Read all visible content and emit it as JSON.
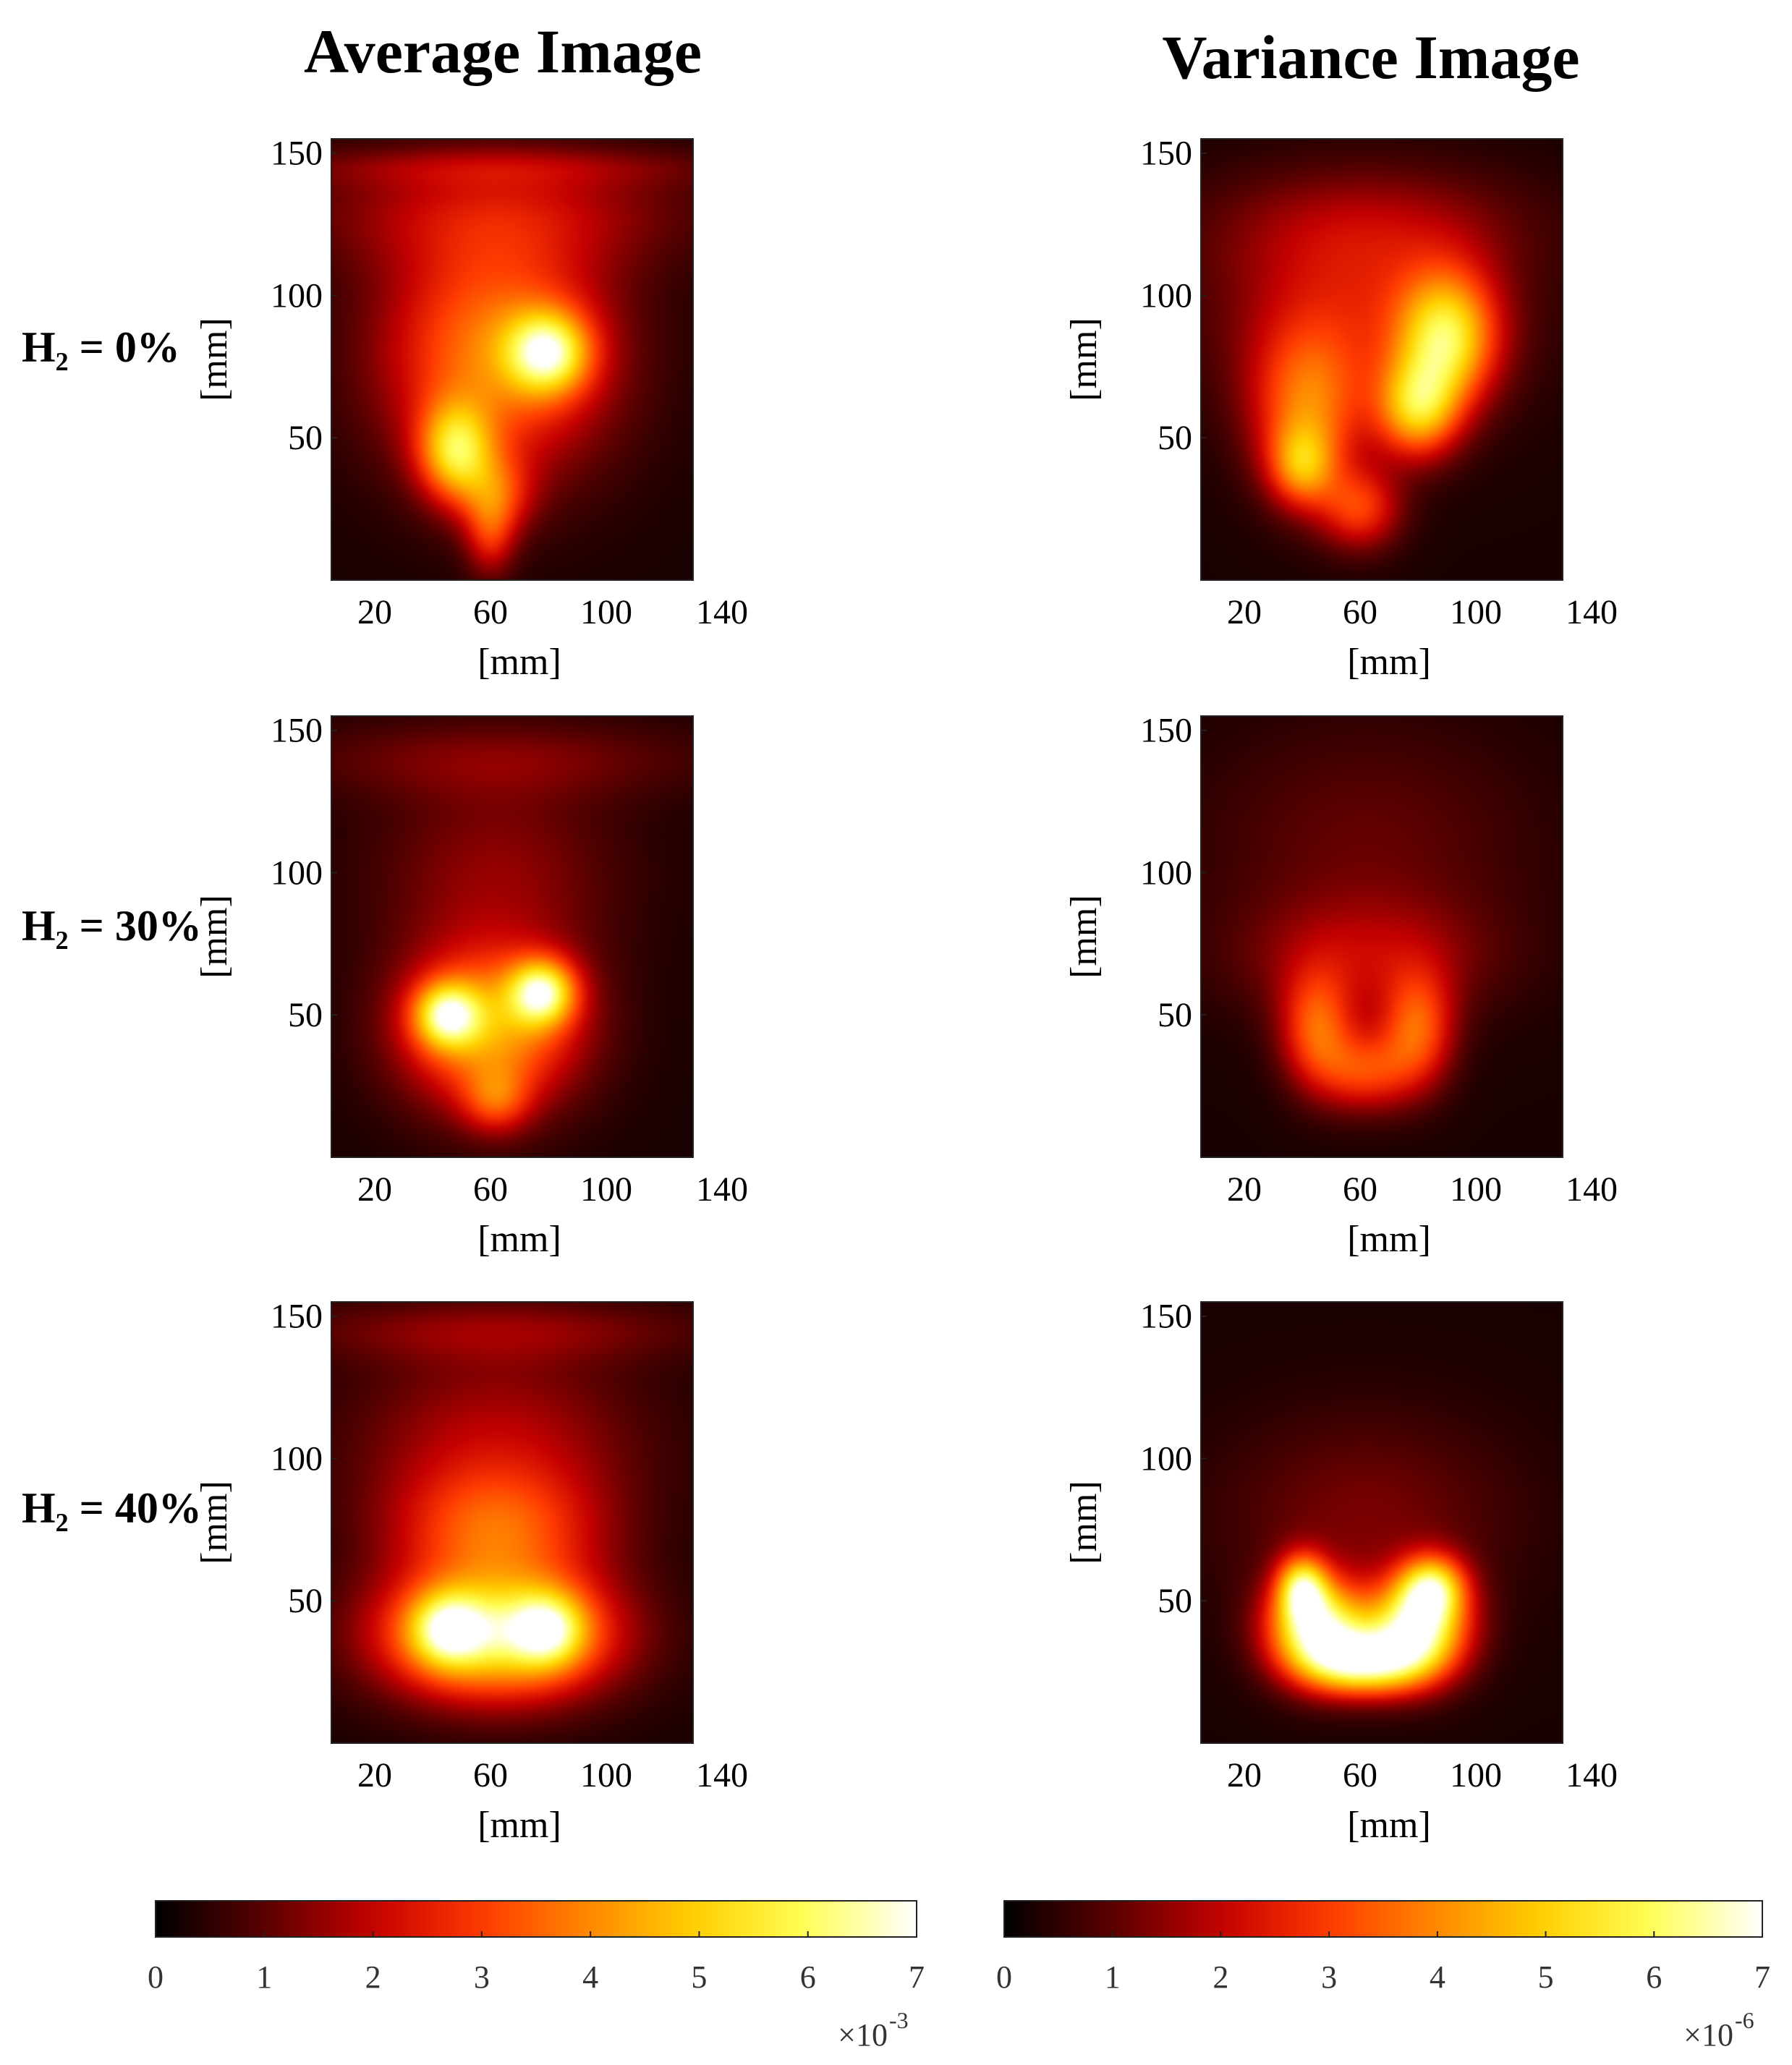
{
  "titles": {
    "left": "Average Image",
    "right": "Variance Image"
  },
  "rows": [
    {
      "label": "H₂ = 0%"
    },
    {
      "label": "H₂ = 30%"
    },
    {
      "label": "H₂ = 40%"
    }
  ],
  "colors": {
    "colormap": [
      "#000000",
      "#5a0000",
      "#c40000",
      "#ff3a00",
      "#ff8a00",
      "#ffd200",
      "#ffff5a",
      "#ffffff"
    ]
  },
  "chart_data": [
    {
      "type": "heatmap",
      "title": "Average Image",
      "row_label": "H₂ = 0%",
      "xlabel": "[mm]",
      "ylabel": "[mm]",
      "xticks": [
        20,
        60,
        100,
        140
      ],
      "yticks": [
        50,
        100,
        150
      ],
      "xlim": [
        5,
        130
      ],
      "ylim": [
        0,
        155
      ],
      "scale_max": 0.0055,
      "blobs": [
        {
          "x": 62,
          "y": 80,
          "sx": 28,
          "sy": 30,
          "v": 0.0036
        },
        {
          "x": 80,
          "y": 80,
          "sx": 10,
          "sy": 10,
          "v": 0.0042
        },
        {
          "x": 48,
          "y": 45,
          "sx": 9,
          "sy": 12,
          "v": 0.004
        },
        {
          "x": 62,
          "y": 30,
          "sx": 9,
          "sy": 10,
          "v": 0.002
        },
        {
          "x": 60,
          "y": 15,
          "sx": 6,
          "sy": 10,
          "v": 0.0018
        },
        {
          "x": 62,
          "y": 130,
          "sx": 50,
          "sy": 15,
          "v": 0.0014
        },
        {
          "x": 62,
          "y": 145,
          "sx": 60,
          "sy": 5,
          "v": 0.0008
        }
      ]
    },
    {
      "type": "heatmap",
      "title": "Variance Image",
      "row_label": "H₂ = 0%",
      "xlabel": "[mm]",
      "ylabel": "[mm]",
      "xticks": [
        20,
        60,
        100,
        140
      ],
      "yticks": [
        50,
        100,
        150
      ],
      "xlim": [
        5,
        130
      ],
      "ylim": [
        0,
        155
      ],
      "scale_max": 7e-06,
      "blobs": [
        {
          "x": 90,
          "y": 85,
          "sx": 12,
          "sy": 16,
          "v": 4.5e-06
        },
        {
          "x": 80,
          "y": 60,
          "sx": 10,
          "sy": 12,
          "v": 4e-06
        },
        {
          "x": 42,
          "y": 60,
          "sx": 14,
          "sy": 20,
          "v": 3e-06
        },
        {
          "x": 40,
          "y": 40,
          "sx": 8,
          "sy": 10,
          "v": 2.8e-06
        },
        {
          "x": 60,
          "y": 25,
          "sx": 10,
          "sy": 10,
          "v": 2.5e-06
        },
        {
          "x": 60,
          "y": 95,
          "sx": 35,
          "sy": 25,
          "v": 1.8e-06
        },
        {
          "x": 62,
          "y": 125,
          "sx": 40,
          "sy": 15,
          "v": 1e-06
        }
      ]
    },
    {
      "type": "heatmap",
      "title": "Average Image",
      "row_label": "H₂ = 30%",
      "xlabel": "[mm]",
      "ylabel": "[mm]",
      "xticks": [
        20,
        60,
        100,
        140
      ],
      "yticks": [
        50,
        100,
        150
      ],
      "xlim": [
        5,
        130
      ],
      "ylim": [
        0,
        155
      ],
      "scale_max": 0.0055,
      "blobs": [
        {
          "x": 60,
          "y": 45,
          "sx": 22,
          "sy": 20,
          "v": 0.004
        },
        {
          "x": 78,
          "y": 58,
          "sx": 8,
          "sy": 8,
          "v": 0.0045
        },
        {
          "x": 45,
          "y": 50,
          "sx": 8,
          "sy": 8,
          "v": 0.004
        },
        {
          "x": 62,
          "y": 20,
          "sx": 8,
          "sy": 8,
          "v": 0.0018
        },
        {
          "x": 62,
          "y": 100,
          "sx": 30,
          "sy": 25,
          "v": 0.0012
        },
        {
          "x": 62,
          "y": 140,
          "sx": 55,
          "sy": 10,
          "v": 0.0009
        }
      ]
    },
    {
      "type": "heatmap",
      "title": "Variance Image",
      "row_label": "H₂ = 30%",
      "xlabel": "[mm]",
      "ylabel": "[mm]",
      "xticks": [
        20,
        60,
        100,
        140
      ],
      "yticks": [
        50,
        100,
        150
      ],
      "xlim": [
        5,
        130
      ],
      "ylim": [
        0,
        155
      ],
      "scale_max": 7e-06,
      "blobs": [
        {
          "x": 45,
          "y": 45,
          "sx": 9,
          "sy": 14,
          "v": 2.8e-06
        },
        {
          "x": 80,
          "y": 45,
          "sx": 9,
          "sy": 14,
          "v": 2.8e-06
        },
        {
          "x": 62,
          "y": 30,
          "sx": 12,
          "sy": 10,
          "v": 2.5e-06
        },
        {
          "x": 62,
          "y": 70,
          "sx": 30,
          "sy": 15,
          "v": 1.4e-06
        },
        {
          "x": 62,
          "y": 110,
          "sx": 40,
          "sy": 30,
          "v": 8e-07
        }
      ]
    },
    {
      "type": "heatmap",
      "title": "Average Image",
      "row_label": "H₂ = 40%",
      "xlabel": "[mm]",
      "ylabel": "[mm]",
      "xticks": [
        20,
        60,
        100,
        140
      ],
      "yticks": [
        50,
        100,
        150
      ],
      "xlim": [
        5,
        130
      ],
      "ylim": [
        0,
        155
      ],
      "scale_max": 0.0055,
      "blobs": [
        {
          "x": 62,
          "y": 38,
          "sx": 28,
          "sy": 16,
          "v": 0.0055
        },
        {
          "x": 45,
          "y": 40,
          "sx": 9,
          "sy": 9,
          "v": 0.003
        },
        {
          "x": 80,
          "y": 40,
          "sx": 9,
          "sy": 9,
          "v": 0.003
        },
        {
          "x": 62,
          "y": 75,
          "sx": 25,
          "sy": 15,
          "v": 0.0024
        },
        {
          "x": 62,
          "y": 105,
          "sx": 35,
          "sy": 25,
          "v": 0.0016
        },
        {
          "x": 62,
          "y": 145,
          "sx": 55,
          "sy": 8,
          "v": 0.001
        }
      ]
    },
    {
      "type": "heatmap",
      "title": "Variance Image",
      "row_label": "H₂ = 40%",
      "xlabel": "[mm]",
      "ylabel": "[mm]",
      "xticks": [
        20,
        60,
        100,
        140
      ],
      "yticks": [
        50,
        100,
        150
      ],
      "xlim": [
        5,
        130
      ],
      "ylim": [
        0,
        155
      ],
      "scale_max": 7e-06,
      "blobs": [
        {
          "x": 45,
          "y": 40,
          "sx": 12,
          "sy": 12,
          "v": 6e-06
        },
        {
          "x": 80,
          "y": 40,
          "sx": 12,
          "sy": 12,
          "v": 6e-06
        },
        {
          "x": 62,
          "y": 28,
          "sx": 14,
          "sy": 8,
          "v": 5e-06
        },
        {
          "x": 40,
          "y": 55,
          "sx": 6,
          "sy": 8,
          "v": 4e-06
        },
        {
          "x": 85,
          "y": 55,
          "sx": 8,
          "sy": 8,
          "v": 4e-06
        },
        {
          "x": 62,
          "y": 80,
          "sx": 35,
          "sy": 25,
          "v": 1e-06
        }
      ]
    }
  ],
  "colorbars": [
    {
      "ticks": [
        "0",
        "1",
        "2",
        "3",
        "4",
        "5",
        "6",
        "7"
      ],
      "multiplier": "×10",
      "exponent": "-3"
    },
    {
      "ticks": [
        "0",
        "1",
        "2",
        "3",
        "4",
        "5",
        "6",
        "7"
      ],
      "multiplier": "×10",
      "exponent": "-6"
    }
  ]
}
